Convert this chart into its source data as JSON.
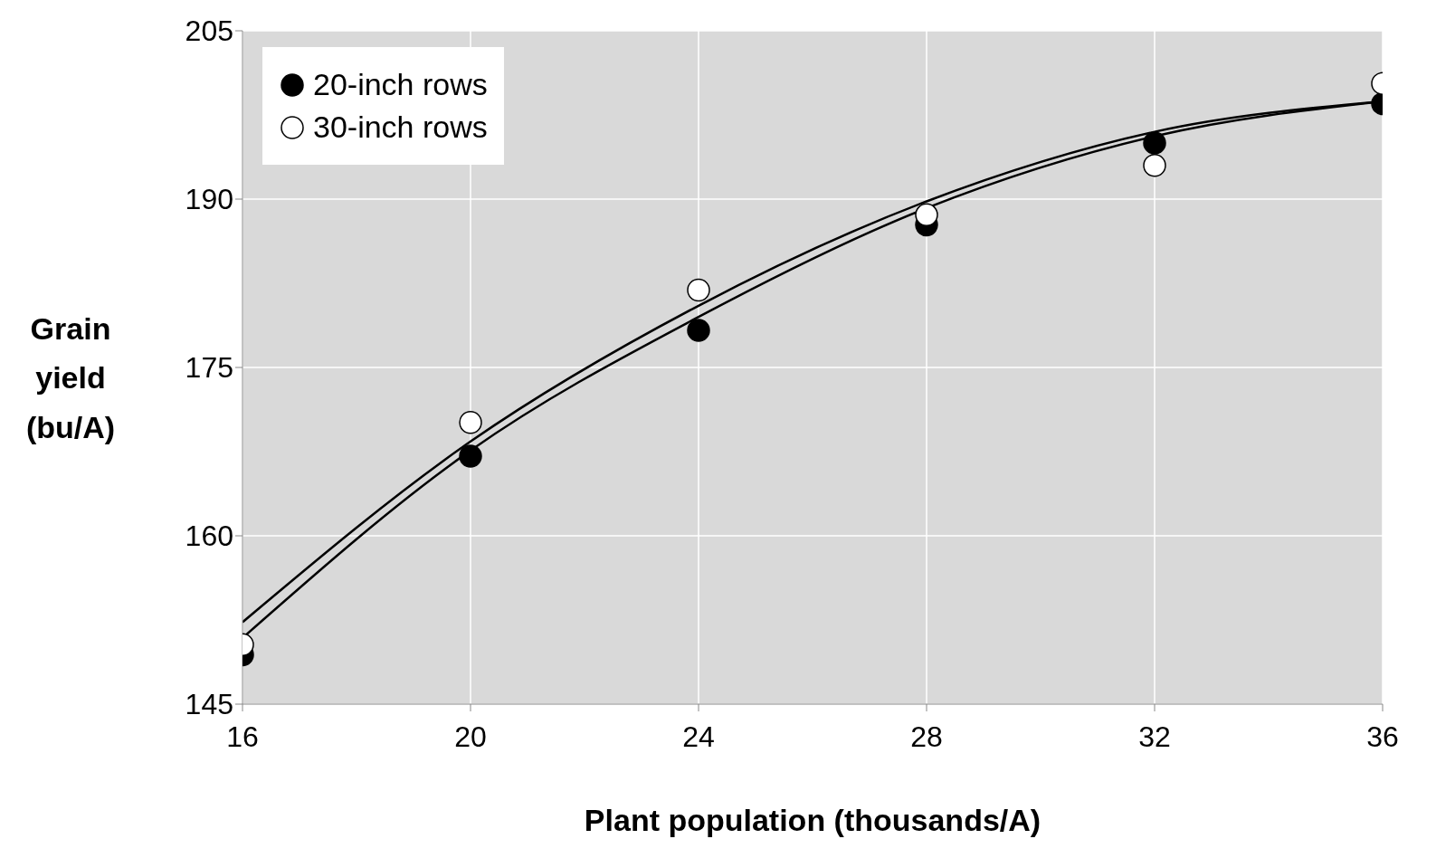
{
  "chart_data": {
    "type": "scatter",
    "xlabel": "Plant population (thousands/A)",
    "ylabel": "Grain yield (bu/A)",
    "xlim": [
      16,
      36
    ],
    "xticks": [
      16,
      20,
      24,
      28,
      32,
      36
    ],
    "ylim": [
      145,
      205
    ],
    "yticks": [
      145,
      160,
      175,
      190,
      205
    ],
    "grid": true,
    "legend": "top left",
    "line_style": "solid",
    "series": [
      {
        "name": "20-inch rows",
        "marker": "circle",
        "color": "#000000",
        "x": [
          16,
          20,
          24,
          28,
          32,
          36
        ],
        "values": [
          149.4,
          167.1,
          178.3,
          187.7,
          195.0,
          198.5
        ]
      },
      {
        "name": "30-inch rows",
        "marker": "circle",
        "color": "#ffffff",
        "x": [
          16,
          20,
          24,
          28,
          32,
          36
        ],
        "values": [
          150.3,
          170.1,
          181.9,
          188.6,
          193.0,
          200.3
        ]
      },
      {
        "type": "line",
        "marker": "none",
        "color": "#000000",
        "x": [
          16,
          20,
          24,
          28,
          32,
          36
        ],
        "values": [
          150.9,
          167.6,
          179.5,
          189.2,
          195.6,
          198.7
        ]
      },
      {
        "type": "line",
        "marker": "none",
        "color": "#000000",
        "x": [
          16,
          20,
          24,
          28,
          32,
          36
        ],
        "values": [
          152.3,
          168.4,
          180.5,
          189.8,
          196.0,
          198.7
        ]
      }
    ]
  }
}
